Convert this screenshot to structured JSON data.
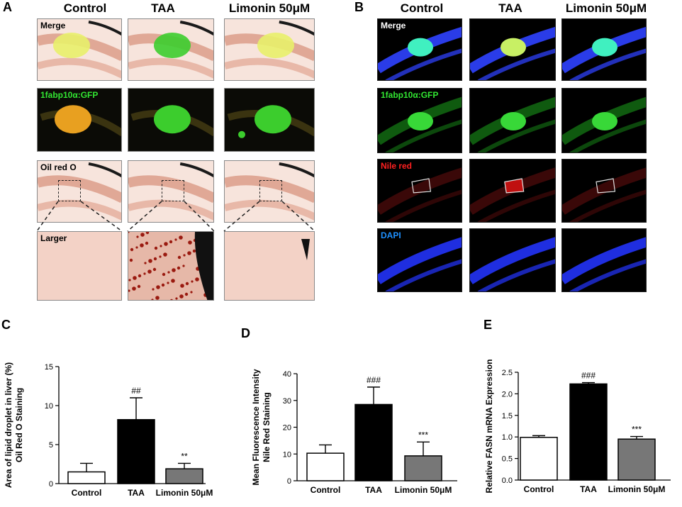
{
  "panelA": {
    "letter": "A",
    "columns": [
      "Control",
      "TAA",
      "Limonin 50μM"
    ],
    "rows": [
      {
        "label": "Merge",
        "label_color": "#000000"
      },
      {
        "label": "1fabp10α:GFP",
        "label_color": "#32e632"
      },
      {
        "label": "Oil red O",
        "label_color": "#000000"
      },
      {
        "label": "Larger",
        "label_color": "#000000"
      }
    ]
  },
  "panelB": {
    "letter": "B",
    "columns": [
      "Control",
      "TAA",
      "Limonin 50μM"
    ],
    "rows": [
      {
        "label": "Merge",
        "label_color": "#ffffff"
      },
      {
        "label": "1fabp10α:GFP",
        "label_color": "#32e632"
      },
      {
        "label": "Nile red",
        "label_color": "#ff2020"
      },
      {
        "label": "DAPI",
        "label_color": "#1e90ff"
      }
    ]
  },
  "chart_data": [
    {
      "letter": "C",
      "type": "bar",
      "ylabel_lines": [
        "Area of lipid droplet in liver   (%)",
        "Oil Red O Staining"
      ],
      "categories": [
        "Control",
        "TAA",
        "Limonin 50μM"
      ],
      "values": [
        1.5,
        8.2,
        1.9
      ],
      "errors": [
        1.1,
        2.8,
        0.7
      ],
      "significance": [
        "",
        "##",
        "**"
      ],
      "ylim": [
        0,
        15
      ],
      "yticks": [
        0,
        5,
        10,
        15
      ],
      "fills": [
        "#ffffff",
        "#000000",
        "#777777"
      ]
    },
    {
      "letter": "D",
      "type": "bar",
      "ylabel_lines": [
        "Mean Fluorescence Intensity",
        "Nile Red Staining"
      ],
      "categories": [
        "Control",
        "TAA",
        "Limonin 50μM"
      ],
      "values": [
        10.3,
        28.5,
        9.3
      ],
      "errors": [
        3.1,
        6.5,
        5.2
      ],
      "significance": [
        "",
        "###",
        "***"
      ],
      "ylim": [
        0,
        40
      ],
      "yticks": [
        0,
        10,
        20,
        30,
        40
      ],
      "fills": [
        "#ffffff",
        "#000000",
        "#777777"
      ]
    },
    {
      "letter": "E",
      "type": "bar",
      "ylabel_lines": [
        "Relative FASN mRNA Expression"
      ],
      "categories": [
        "Control",
        "TAA",
        "Limonin 50μM"
      ],
      "values": [
        0.99,
        2.23,
        0.95
      ],
      "errors": [
        0.04,
        0.03,
        0.06
      ],
      "significance": [
        "",
        "###",
        "***"
      ],
      "ylim": [
        0,
        2.5
      ],
      "yticks": [
        "0.0",
        "0.5",
        "1.0",
        "1.5",
        "2.0",
        "2.5"
      ],
      "fills": [
        "#ffffff",
        "#000000",
        "#777777"
      ]
    }
  ]
}
